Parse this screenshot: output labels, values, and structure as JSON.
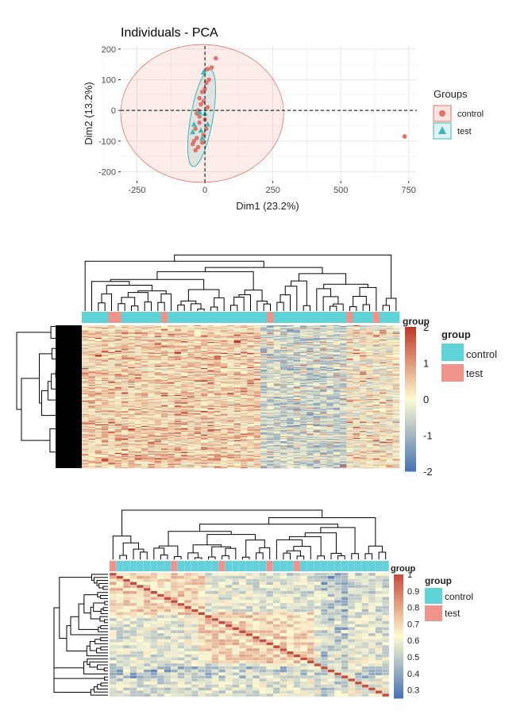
{
  "pca": {
    "title": "Individuals - PCA",
    "xlabel": "Dim1 (23.2%)",
    "ylabel": "Dim2 (13.2%)",
    "x_ticks": [
      "-250",
      "0",
      "250",
      "500",
      "750"
    ],
    "y_ticks": [
      "200",
      "100",
      "0",
      "-100",
      "-200"
    ],
    "legend_title": "Groups",
    "legend": [
      "control",
      "test"
    ]
  },
  "heatmap": {
    "annotation_label": "group",
    "legend_title": "group",
    "legend": [
      "control",
      "test"
    ],
    "scale_title": "group",
    "scale_ticks": [
      "2",
      "1",
      "0",
      "-1",
      "-2"
    ]
  },
  "corr": {
    "annotation_label": "group",
    "legend_title": "group",
    "legend": [
      "control",
      "test"
    ],
    "scale_ticks": [
      "1",
      "0.9",
      "0.8",
      "0.7",
      "0.6",
      "0.5",
      "0.4",
      "0.3"
    ]
  },
  "colors": {
    "control": "#5ED3D8",
    "test": "#F0938A",
    "pca_control": "#E0736A",
    "pca_test": "#3DB7B5",
    "heat_high": "#C0392B",
    "heat_mid": "#FFFBD0",
    "heat_low": "#4A74B4"
  },
  "chart_data": [
    {
      "type": "scatter",
      "title": "Individuals - PCA",
      "xlabel": "Dim1 (23.2%)",
      "ylabel": "Dim2 (13.2%)",
      "xlim": [
        -310,
        780
      ],
      "ylim": [
        -230,
        210
      ],
      "series": [
        {
          "name": "control",
          "points": [
            [
              735,
              -85
            ],
            [
              40,
              170
            ],
            [
              25,
              140
            ],
            [
              10,
              135
            ],
            [
              5,
              90
            ],
            [
              0,
              70
            ],
            [
              -10,
              60
            ],
            [
              -20,
              40
            ],
            [
              -15,
              20
            ],
            [
              -25,
              0
            ],
            [
              -30,
              -10
            ],
            [
              -20,
              -40
            ],
            [
              -35,
              -60
            ],
            [
              -40,
              -100
            ],
            [
              -45,
              -110
            ],
            [
              -25,
              -120
            ],
            [
              -10,
              -105
            ],
            [
              -5,
              -80
            ],
            [
              5,
              -60
            ],
            [
              0,
              -30
            ],
            [
              10,
              10
            ],
            [
              -5,
              30
            ],
            [
              15,
              100
            ],
            [
              -35,
              -130
            ],
            [
              -30,
              -90
            ],
            [
              -20,
              -20
            ]
          ]
        },
        {
          "name": "test",
          "points": [
            [
              -5,
              125
            ],
            [
              -20,
              -5
            ],
            [
              -40,
              -45
            ],
            [
              -45,
              -70
            ],
            [
              -15,
              -65
            ],
            [
              10,
              -45
            ],
            [
              -10,
              -90
            ],
            [
              0,
              -10
            ]
          ]
        }
      ]
    },
    {
      "type": "heatmap",
      "value_range": [
        -2,
        2
      ],
      "columns": 48,
      "column_groups": [
        "control",
        "control",
        "control",
        "control",
        "test",
        "test",
        "control",
        "control",
        "control",
        "control",
        "control",
        "control",
        "test",
        "control",
        "control",
        "control",
        "control",
        "control",
        "control",
        "control",
        "control",
        "control",
        "control",
        "control",
        "control",
        "control",
        "control",
        "control",
        "test",
        "control",
        "control",
        "control",
        "control",
        "control",
        "control",
        "control",
        "control",
        "control",
        "control",
        "control",
        "test",
        "control",
        "control",
        "control",
        "test",
        "control",
        "control",
        "control"
      ],
      "rows": 170
    },
    {
      "type": "heatmap",
      "value_range": [
        0.25,
        1
      ],
      "columns": 41,
      "rows": 41,
      "column_groups": [
        "test",
        "control",
        "control",
        "control",
        "control",
        "control",
        "control",
        "control",
        "control",
        "test",
        "control",
        "control",
        "control",
        "control",
        "control",
        "control",
        "test",
        "control",
        "control",
        "control",
        "control",
        "control",
        "control",
        "test",
        "control",
        "control",
        "control",
        "test",
        "control",
        "control",
        "control",
        "control",
        "control",
        "control",
        "control",
        "control",
        "control",
        "control",
        "control",
        "control",
        "control"
      ]
    }
  ]
}
